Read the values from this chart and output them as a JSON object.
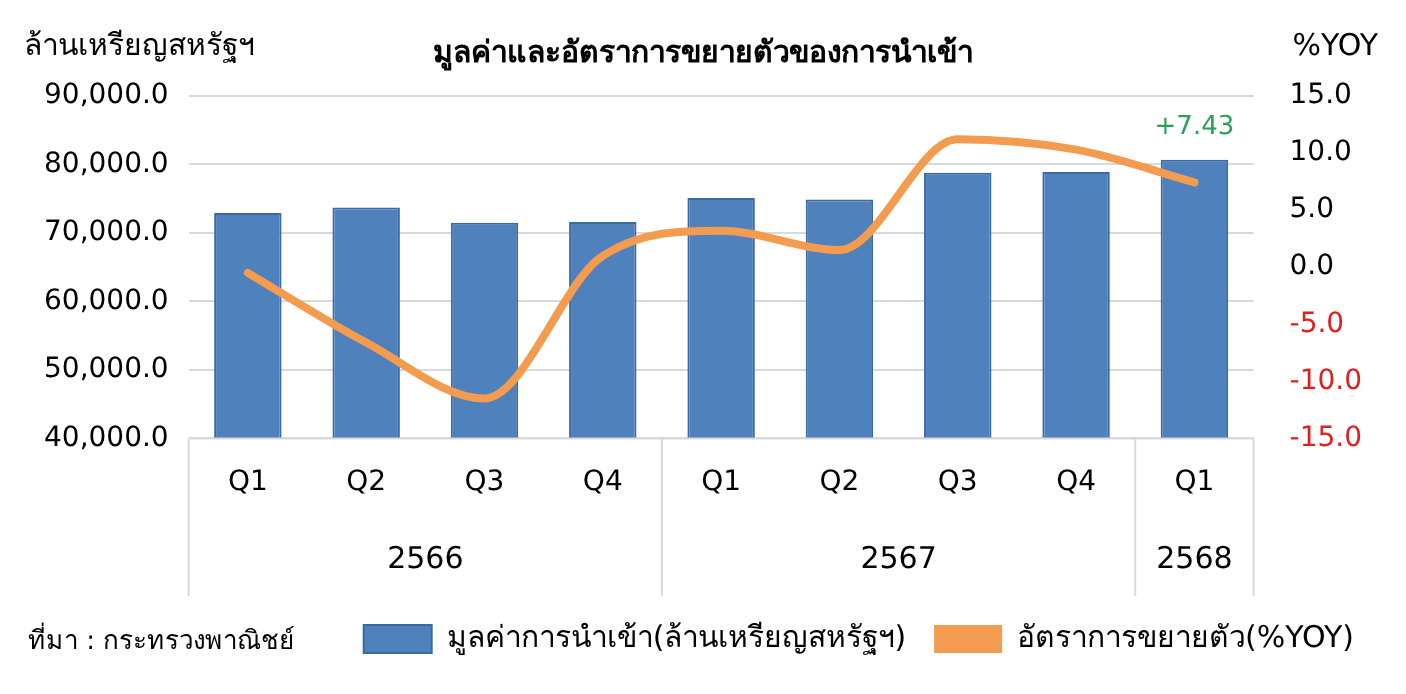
{
  "chart_data": {
    "type": "bar",
    "title": "มูลค่าและอัตราการขยายตัวของการนำเข้า",
    "ylabel": "ล้านเหรียญสหรัฐฯ",
    "y2label": "%YOY",
    "categories": [
      "Q1",
      "Q2",
      "Q3",
      "Q4",
      "Q1",
      "Q2",
      "Q3",
      "Q4",
      "Q1"
    ],
    "series": [
      {
        "name": "มูลค่าการนำเข้า(ล้านเหรียญสหรัฐฯ)",
        "color": "#4f81bd",
        "values": [
          72900,
          73700,
          71500,
          71600,
          75100,
          74900,
          78800,
          78900,
          80700
        ]
      },
      {
        "name": "อัตราการขยายตัว(%YOY)",
        "type": "line",
        "axis": "y2",
        "color": "#f39c4f",
        "values": [
          -0.5,
          -6.6,
          -11.5,
          1.0,
          3.2,
          1.5,
          11.2,
          10.3,
          7.43
        ],
        "value_labels": [
          null,
          null,
          null,
          null,
          null,
          null,
          null,
          null,
          "+7.43"
        ]
      }
    ],
    "ylim": [
      40000,
      90000
    ],
    "yticks": [
      {
        "value": 40000,
        "label": "40,000.0"
      },
      {
        "value": 50000,
        "label": "50,000.0"
      },
      {
        "value": 60000,
        "label": "60,000.0"
      },
      {
        "value": 70000,
        "label": "70,000.0"
      },
      {
        "value": 80000,
        "label": "80,000.0"
      },
      {
        "value": 90000,
        "label": "90,000.0"
      }
    ],
    "y2lim": [
      -15,
      15
    ],
    "y2ticks": [
      {
        "value": -15,
        "label": "-15.0"
      },
      {
        "value": -10,
        "label": "-10.0"
      },
      {
        "value": -5,
        "label": "-5.0"
      },
      {
        "value": 0,
        "label": "0.0"
      },
      {
        "value": 5,
        "label": "5.0"
      },
      {
        "value": 10,
        "label": "10.0"
      },
      {
        "value": 15,
        "label": "15.0"
      }
    ],
    "grid": "y",
    "legend": "bottom",
    "marker": "none",
    "line_style": "solid",
    "annotations": [
      "2566",
      "2567",
      "2568",
      "ที่มา : กระทรวงพาณิชย์"
    ]
  }
}
